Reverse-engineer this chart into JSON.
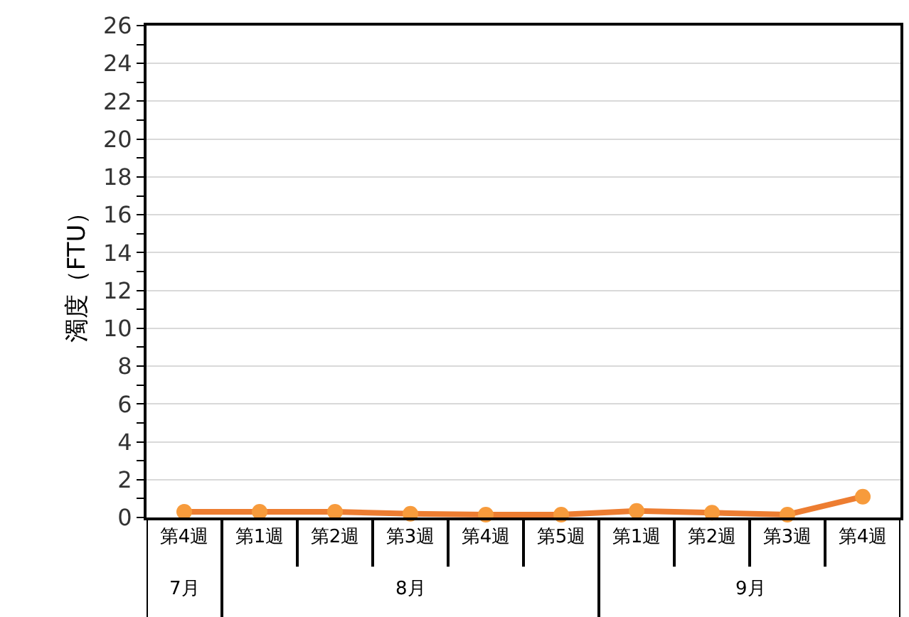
{
  "chart_data": {
    "type": "line",
    "ylabel": "濁度（FTU）",
    "categories": [
      "第4週",
      "第1週",
      "第2週",
      "第3週",
      "第4週",
      "第5週",
      "第1週",
      "第2週",
      "第3週",
      "第4週"
    ],
    "series": [
      {
        "color": "#ed7d31",
        "values": [
          0.3,
          0.3,
          0.3,
          0.2,
          0.15,
          0.15,
          0.35,
          0.25,
          0.15,
          1.1
        ]
      }
    ],
    "annotations": [
      "7月",
      "8月",
      "9月"
    ],
    "ylim": [
      0,
      26
    ],
    "yticks": [
      0,
      {
        "value": 1,
        "label": null
      },
      2,
      {
        "value": 3,
        "label": null
      },
      4,
      {
        "value": 5,
        "label": null
      },
      6,
      {
        "value": 7,
        "label": null
      },
      8,
      {
        "value": 9,
        "label": null
      },
      10,
      {
        "value": 11,
        "label": null
      },
      12,
      {
        "value": 13,
        "label": null
      },
      14,
      {
        "value": 15,
        "label": null
      },
      16,
      {
        "value": 17,
        "label": null
      },
      18,
      {
        "value": 19,
        "label": null
      },
      20,
      {
        "value": 21,
        "label": null
      },
      22,
      {
        "value": 23,
        "label": null
      },
      24,
      {
        "value": 25,
        "label": null
      },
      26
    ],
    "grid": "y",
    "marker": "circle",
    "line_style": "solid"
  }
}
